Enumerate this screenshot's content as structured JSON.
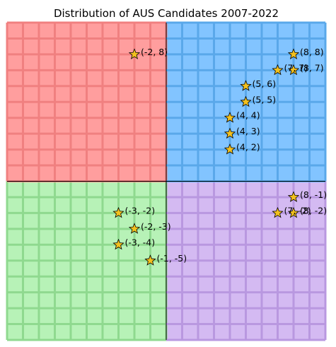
{
  "chart_data": {
    "type": "scatter",
    "title": "Distribution of AUS Candidates 2007-2022",
    "xlabel": "",
    "ylabel": "",
    "xlim": [
      -10,
      10
    ],
    "ylim": [
      -10,
      10
    ],
    "grid": true,
    "quadrants": [
      {
        "name": "top-left",
        "fill": "#ff9e9e",
        "grid": "#f08080"
      },
      {
        "name": "top-right",
        "fill": "#82c4ff",
        "grid": "#5aa8ea"
      },
      {
        "name": "bottom-left",
        "fill": "#b7f2b7",
        "grid": "#8fd98f"
      },
      {
        "name": "bottom-right",
        "fill": "#d4baf2",
        "grid": "#b998e0"
      }
    ],
    "marker": {
      "shape": "star",
      "fill": "#f2c01e",
      "stroke": "#000000"
    },
    "points": [
      {
        "x": -2,
        "y": 8,
        "label": "(-2, 8)"
      },
      {
        "x": 8,
        "y": 8,
        "label": "(8, 8)"
      },
      {
        "x": 7,
        "y": 7,
        "label": "(7, 7)"
      },
      {
        "x": 8,
        "y": 7,
        "label": "(8, 7)"
      },
      {
        "x": 5,
        "y": 6,
        "label": "(5, 6)"
      },
      {
        "x": 5,
        "y": 5,
        "label": "(5, 5)"
      },
      {
        "x": 4,
        "y": 4,
        "label": "(4, 4)"
      },
      {
        "x": 4,
        "y": 3,
        "label": "(4, 3)"
      },
      {
        "x": 4,
        "y": 2,
        "label": "(4, 2)"
      },
      {
        "x": 8,
        "y": -1,
        "label": "(8, -1)"
      },
      {
        "x": 7,
        "y": -2,
        "label": "(7, -2)"
      },
      {
        "x": 8,
        "y": -2,
        "label": "(8, -2)"
      },
      {
        "x": -3,
        "y": -2,
        "label": "(-3, -2)"
      },
      {
        "x": -2,
        "y": -3,
        "label": "(-2, -3)"
      },
      {
        "x": -3,
        "y": -4,
        "label": "(-3, -4)"
      },
      {
        "x": -1,
        "y": -5,
        "label": "(-1, -5)"
      }
    ]
  }
}
